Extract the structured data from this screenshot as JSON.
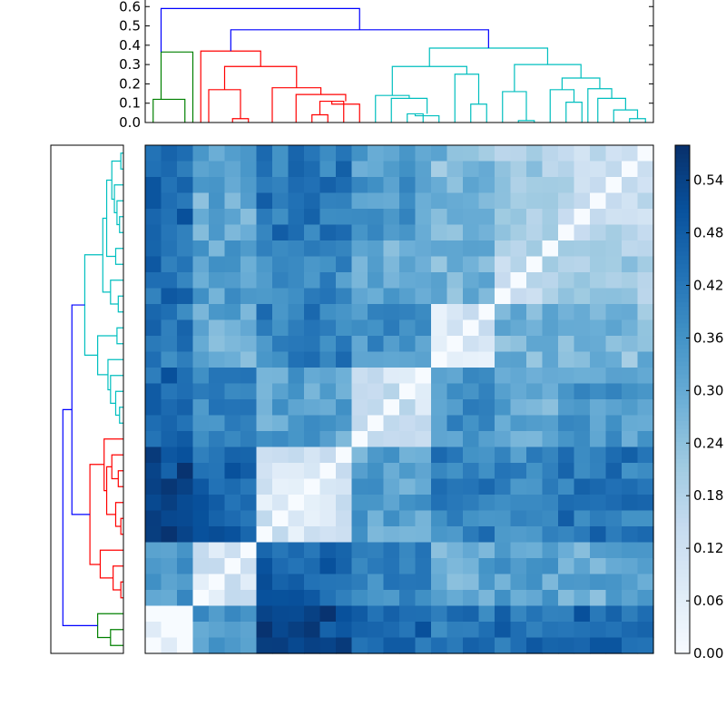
{
  "chart_data": [
    {
      "type": "dendrogram",
      "position": "top",
      "ylim": [
        0,
        0.62
      ],
      "y_ticks": [
        "0.0",
        "0.1",
        "0.2",
        "0.3",
        "0.4",
        "0.5",
        "0.6"
      ],
      "y_tick_values": [
        0,
        0.1,
        0.2,
        0.3,
        0.4,
        0.5,
        0.6
      ],
      "leaf_count": 32,
      "cluster_colors": {
        "green": "#008000",
        "red": "#ff0000",
        "cyan": "#00bfbf",
        "link": "#0000ff"
      },
      "links": [
        {
          "a": 0.5,
          "b": 2.5,
          "ha": 0.0,
          "hb": 0.0,
          "h": 0.12,
          "c": "green"
        },
        {
          "a": 1.0,
          "b": 3.0,
          "ha": 0.12,
          "hb": 0.0,
          "h": 0.365,
          "c": "green"
        },
        {
          "a": 5.5,
          "b": 6.5,
          "ha": 0.0,
          "hb": 0.0,
          "h": 0.02,
          "c": "red"
        },
        {
          "a": 4.0,
          "b": 6.0,
          "ha": 0.0,
          "hb": 0.02,
          "h": 0.17,
          "c": "red"
        },
        {
          "a": 10.5,
          "b": 11.5,
          "ha": 0.0,
          "hb": 0.0,
          "h": 0.04,
          "c": "red"
        },
        {
          "a": 11.0,
          "b": 12.5,
          "ha": 0.04,
          "hb": 0.0,
          "h": 0.11,
          "c": "red"
        },
        {
          "a": 11.75,
          "b": 13.5,
          "ha": 0.11,
          "hb": 0.0,
          "h": 0.095,
          "c": "red"
        },
        {
          "a": 9.5,
          "b": 12.625,
          "ha": 0.0,
          "hb": 0.11,
          "h": 0.145,
          "c": "red"
        },
        {
          "a": 8.0,
          "b": 11.0625,
          "ha": 0.0,
          "hb": 0.145,
          "h": 0.18,
          "c": "red"
        },
        {
          "a": 5.0,
          "b": 9.53,
          "ha": 0.17,
          "hb": 0.18,
          "h": 0.29,
          "c": "red"
        },
        {
          "a": 3.5,
          "b": 7.27,
          "ha": 0.0,
          "hb": 0.29,
          "h": 0.37,
          "c": "red"
        },
        {
          "a": 16.5,
          "b": 17.5,
          "ha": 0.0,
          "hb": 0.0,
          "h": 0.045,
          "c": "cyan"
        },
        {
          "a": 17.0,
          "b": 18.5,
          "ha": 0.045,
          "hb": 0.0,
          "h": 0.035,
          "c": "cyan"
        },
        {
          "a": 15.5,
          "b": 17.75,
          "ha": 0.0,
          "hb": 0.045,
          "h": 0.125,
          "c": "cyan"
        },
        {
          "a": 14.5,
          "b": 16.625,
          "ha": 0.0,
          "hb": 0.125,
          "h": 0.14,
          "c": "cyan"
        },
        {
          "a": 20.5,
          "b": 21.5,
          "ha": 0.0,
          "hb": 0.0,
          "h": 0.095,
          "c": "cyan"
        },
        {
          "a": 19.5,
          "b": 21.0,
          "ha": 0.0,
          "hb": 0.095,
          "h": 0.25,
          "c": "cyan"
        },
        {
          "a": 15.56,
          "b": 20.25,
          "ha": 0.14,
          "hb": 0.25,
          "h": 0.29,
          "c": "cyan"
        },
        {
          "a": 23.5,
          "b": 24.5,
          "ha": 0.0,
          "hb": 0.0,
          "h": 0.01,
          "c": "cyan"
        },
        {
          "a": 22.5,
          "b": 24.0,
          "ha": 0.0,
          "hb": 0.01,
          "h": 0.16,
          "c": "cyan"
        },
        {
          "a": 26.5,
          "b": 27.5,
          "ha": 0.0,
          "hb": 0.0,
          "h": 0.105,
          "c": "cyan"
        },
        {
          "a": 25.5,
          "b": 27.0,
          "ha": 0.0,
          "hb": 0.105,
          "h": 0.17,
          "c": "cyan"
        },
        {
          "a": 30.5,
          "b": 31.5,
          "ha": 0.0,
          "hb": 0.0,
          "h": 0.02,
          "c": "cyan"
        },
        {
          "a": 29.5,
          "b": 31.0,
          "ha": 0.0,
          "hb": 0.02,
          "h": 0.065,
          "c": "cyan"
        },
        {
          "a": 28.5,
          "b": 30.25,
          "ha": 0.0,
          "hb": 0.065,
          "h": 0.125,
          "c": "cyan"
        },
        {
          "a": 27.875,
          "b": 29.375,
          "ha": 0.0,
          "hb": 0.125,
          "h": 0.175,
          "c": "cyan"
        },
        {
          "a": 26.25,
          "b": 28.625,
          "ha": 0.17,
          "hb": 0.175,
          "h": 0.23,
          "c": "cyan"
        },
        {
          "a": 23.25,
          "b": 27.44,
          "ha": 0.16,
          "hb": 0.23,
          "h": 0.3,
          "c": "cyan"
        },
        {
          "a": 17.9,
          "b": 25.34,
          "ha": 0.29,
          "hb": 0.3,
          "h": 0.385,
          "c": "cyan"
        },
        {
          "a": 5.39,
          "b": 21.62,
          "ha": 0.37,
          "hb": 0.385,
          "h": 0.48,
          "c": "link"
        },
        {
          "a": 1.0,
          "b": 13.5,
          "ha": 0.365,
          "hb": 0.48,
          "h": 0.59,
          "c": "link"
        }
      ]
    },
    {
      "type": "dendrogram",
      "position": "left",
      "xlim": [
        0.62,
        0
      ],
      "leaf_count": 32,
      "note_order": "leaf 0 at bottom",
      "links": [
        {
          "a": 0.5,
          "b": 1.5,
          "ha": 0.0,
          "hb": 0.0,
          "h": 0.1,
          "c": "green"
        },
        {
          "a": 1.0,
          "b": 2.5,
          "ha": 0.1,
          "hb": 0.0,
          "h": 0.2,
          "c": "green"
        },
        {
          "a": 3.5,
          "b": 4.5,
          "ha": 0.0,
          "hb": 0.0,
          "h": 0.02,
          "c": "red"
        },
        {
          "a": 4.0,
          "b": 5.5,
          "ha": 0.02,
          "hb": 0.0,
          "h": 0.08,
          "c": "red"
        },
        {
          "a": 4.75,
          "b": 6.5,
          "ha": 0.08,
          "hb": 0.0,
          "h": 0.18,
          "c": "red"
        },
        {
          "a": 7.5,
          "b": 8.5,
          "ha": 0.0,
          "hb": 0.0,
          "h": 0.02,
          "c": "red"
        },
        {
          "a": 8.0,
          "b": 9.5,
          "ha": 0.02,
          "hb": 0.0,
          "h": 0.06,
          "c": "red"
        },
        {
          "a": 10.5,
          "b": 11.5,
          "ha": 0.0,
          "hb": 0.0,
          "h": 0.04,
          "c": "red"
        },
        {
          "a": 11.0,
          "b": 12.5,
          "ha": 0.04,
          "hb": 0.0,
          "h": 0.09,
          "c": "red"
        },
        {
          "a": 8.75,
          "b": 11.75,
          "ha": 0.06,
          "hb": 0.09,
          "h": 0.13,
          "c": "red"
        },
        {
          "a": 10.25,
          "b": 13.5,
          "ha": 0.13,
          "hb": 0.0,
          "h": 0.15,
          "c": "red"
        },
        {
          "a": 5.6,
          "b": 11.9,
          "ha": 0.18,
          "hb": 0.15,
          "h": 0.26,
          "c": "red"
        },
        {
          "a": 14.5,
          "b": 15.5,
          "ha": 0.0,
          "hb": 0.0,
          "h": 0.03,
          "c": "cyan"
        },
        {
          "a": 15.0,
          "b": 16.5,
          "ha": 0.03,
          "hb": 0.0,
          "h": 0.06,
          "c": "cyan"
        },
        {
          "a": 15.75,
          "b": 17.5,
          "ha": 0.06,
          "hb": 0.0,
          "h": 0.1,
          "c": "cyan"
        },
        {
          "a": 16.6,
          "b": 18.5,
          "ha": 0.1,
          "hb": 0.0,
          "h": 0.12,
          "c": "cyan"
        },
        {
          "a": 19.5,
          "b": 20.5,
          "ha": 0.0,
          "hb": 0.0,
          "h": 0.05,
          "c": "cyan"
        },
        {
          "a": 17.55,
          "b": 20.0,
          "ha": 0.12,
          "hb": 0.05,
          "h": 0.2,
          "c": "cyan"
        },
        {
          "a": 21.5,
          "b": 22.5,
          "ha": 0.0,
          "hb": 0.0,
          "h": 0.04,
          "c": "cyan"
        },
        {
          "a": 22.0,
          "b": 23.5,
          "ha": 0.04,
          "hb": 0.0,
          "h": 0.1,
          "c": "cyan"
        },
        {
          "a": 24.5,
          "b": 25.5,
          "ha": 0.0,
          "hb": 0.0,
          "h": 0.06,
          "c": "cyan"
        },
        {
          "a": 26.5,
          "b": 27.5,
          "ha": 0.0,
          "hb": 0.0,
          "h": 0.03,
          "c": "cyan"
        },
        {
          "a": 27.0,
          "b": 28.5,
          "ha": 0.03,
          "hb": 0.0,
          "h": 0.05,
          "c": "cyan"
        },
        {
          "a": 27.75,
          "b": 29.5,
          "ha": 0.05,
          "hb": 0.0,
          "h": 0.07,
          "c": "cyan"
        },
        {
          "a": 30.5,
          "b": 31.5,
          "ha": 0.0,
          "hb": 0.0,
          "h": 0.02,
          "c": "cyan"
        },
        {
          "a": 28.6,
          "b": 31.0,
          "ha": 0.07,
          "hb": 0.02,
          "h": 0.09,
          "c": "cyan"
        },
        {
          "a": 25.0,
          "b": 29.8,
          "ha": 0.06,
          "hb": 0.09,
          "h": 0.13,
          "c": "cyan"
        },
        {
          "a": 22.75,
          "b": 27.4,
          "ha": 0.1,
          "hb": 0.13,
          "h": 0.16,
          "c": "cyan"
        },
        {
          "a": 18.78,
          "b": 25.1,
          "ha": 0.2,
          "hb": 0.16,
          "h": 0.3,
          "c": "cyan"
        },
        {
          "a": 8.75,
          "b": 21.94,
          "ha": 0.26,
          "hb": 0.3,
          "h": 0.4,
          "c": "link"
        },
        {
          "a": 1.75,
          "b": 15.35,
          "ha": 0.2,
          "hb": 0.4,
          "h": 0.47,
          "c": "link"
        }
      ]
    },
    {
      "type": "heatmap",
      "rows": 32,
      "cols": 32,
      "vmin": 0.0,
      "vmax": 0.58,
      "colormap": "Blues",
      "colormap_stops": [
        "#f7fbff",
        "#deebf7",
        "#c6dbef",
        "#9ecae1",
        "#6baed6",
        "#4292c6",
        "#2171b5",
        "#08519c",
        "#08306b"
      ],
      "block_means": [
        [
          0.02,
          0.34,
          0.52,
          0.46,
          0.42,
          0.44,
          0.45
        ],
        [
          0.34,
          0.1,
          0.46,
          0.4,
          0.3,
          0.32,
          0.3
        ],
        [
          0.52,
          0.46,
          0.1,
          0.32,
          0.4,
          0.38,
          0.42
        ],
        [
          0.46,
          0.4,
          0.32,
          0.12,
          0.36,
          0.3,
          0.34
        ],
        [
          0.42,
          0.3,
          0.4,
          0.36,
          0.1,
          0.28,
          0.26
        ],
        [
          0.44,
          0.32,
          0.38,
          0.3,
          0.28,
          0.18,
          0.2
        ],
        [
          0.45,
          0.3,
          0.42,
          0.34,
          0.26,
          0.2,
          0.16
        ]
      ],
      "block_bounds": [
        0,
        3,
        7,
        13,
        18,
        22,
        26,
        32
      ]
    },
    {
      "type": "colorbar",
      "vmin": 0.0,
      "vmax": 0.58,
      "ticks": [
        "0.00",
        "0.06",
        "0.12",
        "0.18",
        "0.24",
        "0.30",
        "0.36",
        "0.42",
        "0.48",
        "0.54"
      ],
      "tick_values": [
        0,
        0.06,
        0.12,
        0.18,
        0.24,
        0.3,
        0.36,
        0.42,
        0.48,
        0.54
      ]
    }
  ]
}
